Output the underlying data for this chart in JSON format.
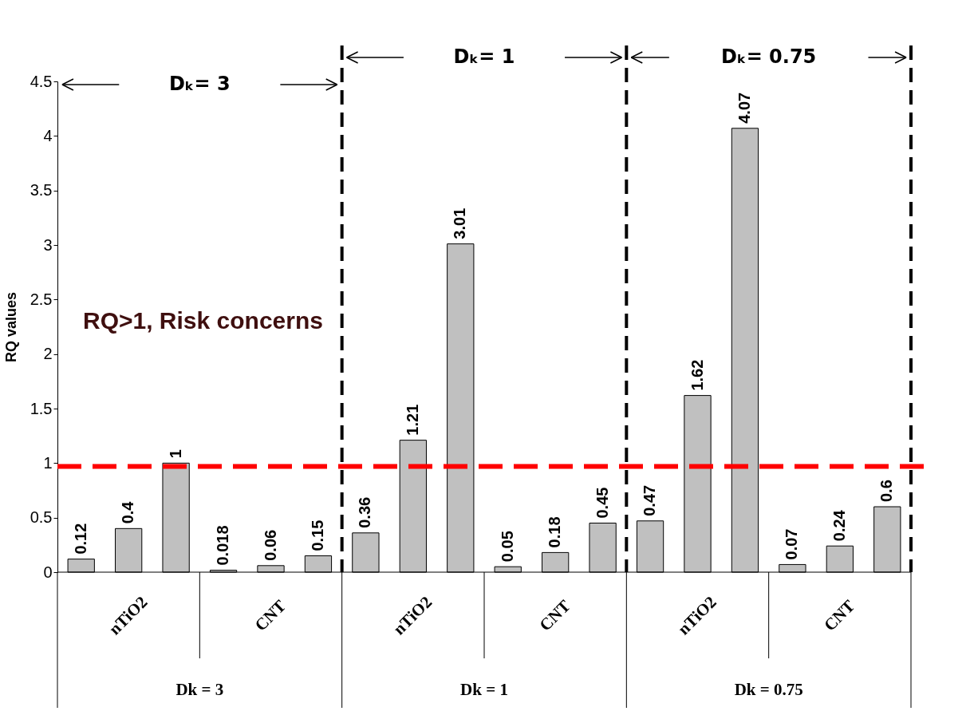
{
  "chart_data": {
    "type": "bar",
    "categories": [
      null,
      null,
      null,
      null,
      null,
      null,
      null,
      null,
      null,
      null,
      null,
      null,
      null,
      null,
      null,
      null,
      null,
      null
    ],
    "values": [
      0.12,
      0.4,
      1,
      0.018,
      0.06,
      0.15,
      0.36,
      1.21,
      3.01,
      0.05,
      0.18,
      0.45,
      0.47,
      1.62,
      4.07,
      0.07,
      0.24,
      0.6
    ],
    "color": "#c0c0c0",
    "ylabel": "RQ values",
    "ylim": [
      0,
      4.5
    ],
    "yticks": [
      0,
      0.5,
      1,
      1.5,
      2,
      2.5,
      3,
      3.5,
      4,
      4.5
    ],
    "grid": false,
    "data_labels": true,
    "ref_lines": [
      {
        "axis": "y",
        "value": 0.97,
        "color": "#ff0000",
        "line_style": "dashed"
      }
    ],
    "annotations": [
      "nTiO2",
      "CNT",
      "nTiO2",
      "CNT",
      "nTiO2",
      "CNT",
      "Dk = 3",
      "Dk = 1",
      "Dk = 0.75",
      "Dₖ= 3",
      "Dₖ= 1",
      "Dₖ= 0.75",
      "RQ>1, Risk concerns"
    ]
  }
}
